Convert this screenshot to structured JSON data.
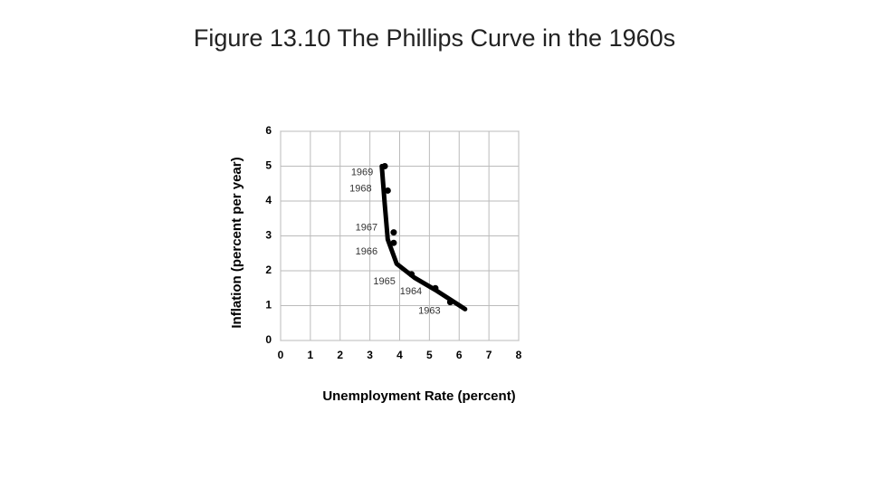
{
  "chart_data": {
    "type": "scatter",
    "title": "Figure 13.10 The Phillips Curve in the 1960s",
    "x_label": "Unemployment Rate (percent)",
    "y_label": "Inflation (percent per year)",
    "xlim": [
      0,
      8
    ],
    "xticks": [
      0,
      1,
      2,
      3,
      4,
      5,
      6,
      7,
      8
    ],
    "ylim": [
      0,
      6
    ],
    "yticks": [
      0,
      1,
      2,
      3,
      4,
      5,
      6
    ],
    "grid": true,
    "series": [
      {
        "type": "line",
        "color": "#000000",
        "x": [
          3.4,
          3.5,
          3.6,
          3.9,
          4.5,
          5.2,
          6.2
        ],
        "values": [
          5.0,
          3.9,
          2.9,
          2.2,
          1.8,
          1.45,
          0.9
        ]
      },
      {
        "type": "scatter",
        "color": "#000000",
        "x": [
          3.5,
          3.6,
          3.8,
          3.8,
          4.4,
          5.2,
          5.7
        ],
        "values": [
          5.0,
          4.3,
          3.1,
          2.8,
          1.9,
          1.5,
          1.1
        ],
        "point_labels": [
          "1969",
          "1968",
          "1967",
          "1966",
          "1965",
          "1964",
          "1963"
        ]
      }
    ]
  }
}
